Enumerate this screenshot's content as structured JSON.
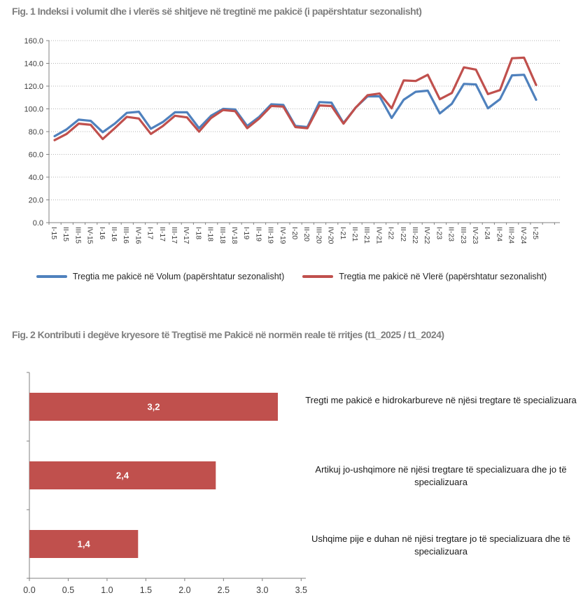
{
  "page": {
    "background": "#ffffff"
  },
  "fig1": {
    "title": "Fig. 1 Indeksi i volumit dhe i vlerës së shitjeve në tregtinë me pakicë (i papërshtatur sezonalisht)",
    "legend": [
      {
        "label": "Tregtia me pakicë në Volum (papërshtatur sezonalisht)",
        "color": "#4F81BD"
      },
      {
        "label": "Tregtia me pakicë në Vlerë (papërshtatur sezonalisht)",
        "color": "#C0504D"
      }
    ]
  },
  "fig2": {
    "title": "Fig. 2 Kontributi i degëve kryesore të Tregtisë me Pakicë në normën reale të rritjes (t1_2025 / t1_2024)"
  },
  "chart_data": [
    {
      "type": "line",
      "title": "Fig. 1 Indeksi i volumit dhe i vlerës së shitjeve në tregtinë me pakicë (i papërshtatur sezonalisht)",
      "xlabel": "",
      "ylabel": "",
      "ylim": [
        0,
        160
      ],
      "ytick_step": 20,
      "ytick_labels": [
        "0.0",
        "20.0",
        "40.0",
        "60.0",
        "80.0",
        "100.0",
        "120.0",
        "140.0",
        "160.0"
      ],
      "grid": "horizontal-dotted",
      "legend_position": "bottom",
      "categories": [
        "I-15",
        "II-15",
        "III-15",
        "IV-15",
        "I-16",
        "II-16",
        "III-16",
        "IV-16",
        "I-17",
        "II-17",
        "III-17",
        "IV-17",
        "I-18",
        "II-18",
        "III-18",
        "IV-18",
        "I-19",
        "II-19",
        "III-19",
        "IV-19",
        "I-20",
        "II-20",
        "III-20",
        "IV-20",
        "I-21",
        "II-21",
        "III-21",
        "IV-21",
        "I-22",
        "II-22",
        "III-22",
        "IV-22",
        "I-23",
        "II-23",
        "III-23",
        "IV-23",
        "I-24",
        "II-24",
        "III-24",
        "IV-24",
        "I-25"
      ],
      "series": [
        {
          "name": "Tregtia me pakicë në Volum (papërshtatur sezonalisht)",
          "color": "#4F81BD",
          "values": [
            76,
            82,
            90.5,
            89.5,
            79.5,
            87,
            96.5,
            97.5,
            82.5,
            88.5,
            97,
            97,
            83,
            94,
            100,
            99.5,
            85,
            93,
            104,
            103.5,
            85,
            84,
            106,
            105.5,
            87.5,
            101,
            111,
            111,
            92,
            108,
            115,
            116,
            96,
            104.5,
            122,
            121.5,
            100.5,
            108.5,
            129.5,
            130,
            108
          ]
        },
        {
          "name": "Tregtia me pakicë në Vlerë (papërshtatur sezonalisht)",
          "color": "#C0504D",
          "values": [
            72.5,
            78,
            87,
            86,
            73.5,
            83,
            93,
            91.5,
            78,
            85,
            94,
            92.5,
            80,
            92,
            99,
            98,
            83,
            91.5,
            102.5,
            102,
            84,
            83,
            103,
            102.5,
            87,
            101,
            112,
            113.5,
            100.5,
            125,
            124.5,
            130,
            108.5,
            114,
            136.5,
            134.5,
            113,
            116.5,
            144.5,
            145,
            121
          ]
        }
      ]
    },
    {
      "type": "bar",
      "orientation": "horizontal",
      "title": "Fig. 2 Kontributi i degëve kryesore të Tregtisë me Pakicë në normën reale të rritjes (t1_2025 / t1_2024)",
      "xlabel": "",
      "ylabel": "",
      "bar_color": "#C0504D",
      "value_label_color": "#ffffff",
      "xlim": [
        0,
        3.5
      ],
      "xtick_labels": [
        "0.0",
        "0.5",
        "1.0",
        "1.5",
        "2.0",
        "2.5",
        "3.0",
        "3.5"
      ],
      "categories": [
        "Tregti me pakicë e hidrokarbureve në njësi tregtare të specializuara",
        "Artikuj jo-ushqimore në njësi tregtare të specializuara dhe jo të specializuara",
        "Ushqime pije e duhan në njësi tregtare  jo të specializuara dhe të specializuara"
      ],
      "values": [
        3.2,
        2.4,
        1.4
      ],
      "value_labels": [
        "3,2",
        "2,4",
        "1,4"
      ]
    }
  ]
}
